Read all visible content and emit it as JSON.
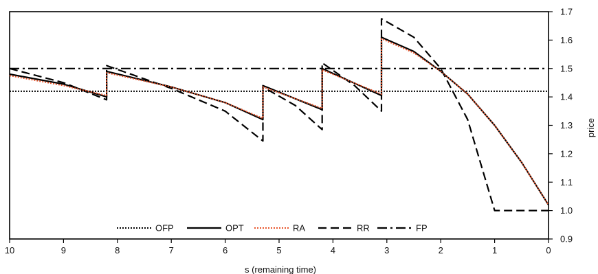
{
  "chart_data": {
    "type": "line",
    "title": "",
    "xlabel": "s (remaining time)",
    "ylabel": "price",
    "xlim": [
      10,
      0
    ],
    "ylim": [
      0.9,
      1.7
    ],
    "x_reversed": true,
    "y_axis_side": "right",
    "grid": false,
    "legend_position": "bottom-center",
    "x_ticks": [
      10,
      9,
      8,
      7,
      6,
      5,
      4,
      3,
      2,
      1,
      0
    ],
    "y_ticks": [
      "0.9",
      "1.0",
      "1.1",
      "1.2",
      "1.3",
      "1.4",
      "1.5",
      "1.6",
      "1.7"
    ],
    "series": [
      {
        "name": "OFP",
        "style": "dotted",
        "color": "#000000",
        "points": [
          [
            10,
            1.42
          ],
          [
            0,
            1.42
          ]
        ]
      },
      {
        "name": "OPT",
        "style": "solid",
        "color": "#000000",
        "points": [
          [
            10,
            1.48
          ],
          [
            9,
            1.445
          ],
          [
            8.2,
            1.4
          ],
          [
            8.2,
            1.49
          ],
          [
            7,
            1.435
          ],
          [
            6,
            1.38
          ],
          [
            5.3,
            1.32
          ],
          [
            5.3,
            1.44
          ],
          [
            4.2,
            1.355
          ],
          [
            4.2,
            1.5
          ],
          [
            3.1,
            1.405
          ],
          [
            3.1,
            1.61
          ],
          [
            2.5,
            1.56
          ],
          [
            2.0,
            1.49
          ],
          [
            1.5,
            1.41
          ],
          [
            1.0,
            1.3
          ],
          [
            0.5,
            1.17
          ],
          [
            0,
            1.02
          ]
        ]
      },
      {
        "name": "RA",
        "style": "dotted",
        "color": "#e8542b",
        "points": [
          [
            10,
            1.475
          ],
          [
            9,
            1.44
          ],
          [
            8.2,
            1.405
          ],
          [
            8.2,
            1.485
          ],
          [
            7,
            1.435
          ],
          [
            6,
            1.38
          ],
          [
            5.3,
            1.325
          ],
          [
            5.3,
            1.435
          ],
          [
            4.2,
            1.36
          ],
          [
            4.2,
            1.495
          ],
          [
            3.1,
            1.41
          ],
          [
            3.1,
            1.605
          ],
          [
            2.5,
            1.555
          ],
          [
            2.0,
            1.49
          ],
          [
            1.5,
            1.41
          ],
          [
            1.0,
            1.3
          ],
          [
            0.5,
            1.17
          ],
          [
            0,
            1.02
          ]
        ]
      },
      {
        "name": "RR",
        "style": "dashed",
        "color": "#000000",
        "points": [
          [
            10,
            1.5
          ],
          [
            9,
            1.45
          ],
          [
            8.2,
            1.39
          ],
          [
            8.2,
            1.51
          ],
          [
            7,
            1.43
          ],
          [
            6,
            1.35
          ],
          [
            5.3,
            1.245
          ],
          [
            5.3,
            1.435
          ],
          [
            4.7,
            1.37
          ],
          [
            4.2,
            1.285
          ],
          [
            4.2,
            1.52
          ],
          [
            3.6,
            1.44
          ],
          [
            3.1,
            1.35
          ],
          [
            3.1,
            1.675
          ],
          [
            2.5,
            1.61
          ],
          [
            2.0,
            1.5
          ],
          [
            1.5,
            1.32
          ],
          [
            1.0,
            1.0
          ],
          [
            0,
            1.0
          ]
        ]
      },
      {
        "name": "FP",
        "style": "dashdot",
        "color": "#000000",
        "points": [
          [
            10,
            1.5
          ],
          [
            0,
            1.5
          ]
        ]
      }
    ]
  }
}
